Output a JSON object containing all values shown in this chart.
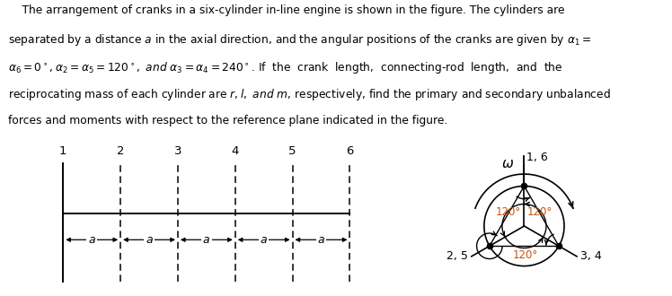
{
  "text_lines": [
    "    The arrangement of cranks in a six-cylinder in-line engine is shown in the figure. The cylinders are",
    "separated by a distance $a$ in the axial direction, and the angular positions of the cranks are given by $\\alpha_1 =$",
    "$\\alpha_6 = 0^\\circ, \\alpha_2 = \\alpha_5 = 120^\\circ,\\ and\\ \\alpha_3 = \\alpha_4 = 240^\\circ$. If  the  crank  length,  connecting-rod  length,  and  the",
    "reciprocating mass of each cylinder are $r, l,\\ and\\ m$, respectively, find the primary and secondary unbalanced",
    "forces and moments with respect to the reference plane indicated in the figure."
  ],
  "cylinder_labels": [
    "1",
    "2",
    "3",
    "4",
    "5",
    "6"
  ],
  "crank_labels": [
    "1, 6",
    "2, 5",
    "3, 4"
  ],
  "bg_color": "#ffffff",
  "text_color": "#000000",
  "text_fontsize": 8.8,
  "diagram_line_color": "#000000",
  "angle_label_color": "#c8520a"
}
